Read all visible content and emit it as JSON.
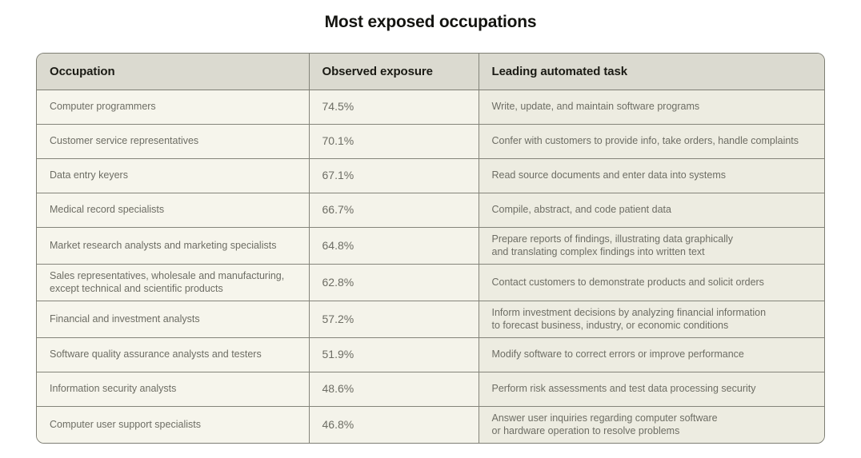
{
  "title": "Most exposed occupations",
  "table": {
    "columns": [
      "Occupation",
      "Observed exposure",
      "Leading automated task"
    ],
    "rows": [
      {
        "occupation": "Computer programmers",
        "exposure": "74.5%",
        "task": "Write, update, and maintain software programs"
      },
      {
        "occupation": "Customer service representatives",
        "exposure": "70.1%",
        "task": "Confer with customers to provide info, take orders, handle complaints"
      },
      {
        "occupation": "Data entry keyers",
        "exposure": "67.1%",
        "task": "Read source documents and enter data into systems"
      },
      {
        "occupation": "Medical record specialists",
        "exposure": "66.7%",
        "task": "Compile, abstract, and code patient data"
      },
      {
        "occupation": "Market research analysts and marketing specialists",
        "exposure": "64.8%",
        "task": "Prepare reports of findings, illustrating data graphically\nand translating complex findings into written text"
      },
      {
        "occupation": "Sales representatives, wholesale and manufacturing,\nexcept technical and scientific products",
        "exposure": "62.8%",
        "task": "Contact customers to demonstrate products and solicit orders"
      },
      {
        "occupation": "Financial and investment analysts",
        "exposure": "57.2%",
        "task": "Inform investment decisions by analyzing financial information\nto forecast business, industry, or economic conditions"
      },
      {
        "occupation": "Software quality assurance analysts and testers",
        "exposure": "51.9%",
        "task": "Modify software to correct errors or improve performance"
      },
      {
        "occupation": "Information security analysts",
        "exposure": "48.6%",
        "task": "Perform risk assessments and test data processing security"
      },
      {
        "occupation": "Computer user support specialists",
        "exposure": "46.8%",
        "task": "Answer user inquiries regarding computer software\nor hardware operation to resolve problems"
      }
    ]
  },
  "colors": {
    "page_bg": "#ffffff",
    "header_bg": "#dbdad0",
    "cell_bg": "#f6f5ec",
    "task_cell_bg": "#edece1",
    "border": "#84847a",
    "header_text": "#1b1b15",
    "body_text": "#6d6d64"
  },
  "chart_data": {
    "type": "table",
    "title": "Most exposed occupations",
    "columns": [
      "Occupation",
      "Observed exposure",
      "Leading automated task"
    ],
    "categories": [
      "Computer programmers",
      "Customer service representatives",
      "Data entry keyers",
      "Medical record specialists",
      "Market research analysts and marketing specialists",
      "Sales representatives, wholesale and manufacturing, except technical and scientific products",
      "Financial and investment analysts",
      "Software quality assurance analysts and testers",
      "Information security analysts",
      "Computer user support specialists"
    ],
    "values": [
      74.5,
      70.1,
      67.1,
      66.7,
      64.8,
      62.8,
      57.2,
      51.9,
      48.6,
      46.8
    ],
    "value_unit": "%",
    "value_label": "Observed exposure",
    "annotations": [
      "Write, update, and maintain software programs",
      "Confer with customers to provide info, take orders, handle complaints",
      "Read source documents and enter data into systems",
      "Compile, abstract, and code patient data",
      "Prepare reports of findings, illustrating data graphically and translating complex findings into written text",
      "Contact customers to demonstrate products and solicit orders",
      "Inform investment decisions by analyzing financial information to forecast business, industry, or economic conditions",
      "Modify software to correct errors or improve performance",
      "Perform risk assessments and test data processing security",
      "Answer user inquiries regarding computer software or hardware operation to resolve problems"
    ]
  }
}
